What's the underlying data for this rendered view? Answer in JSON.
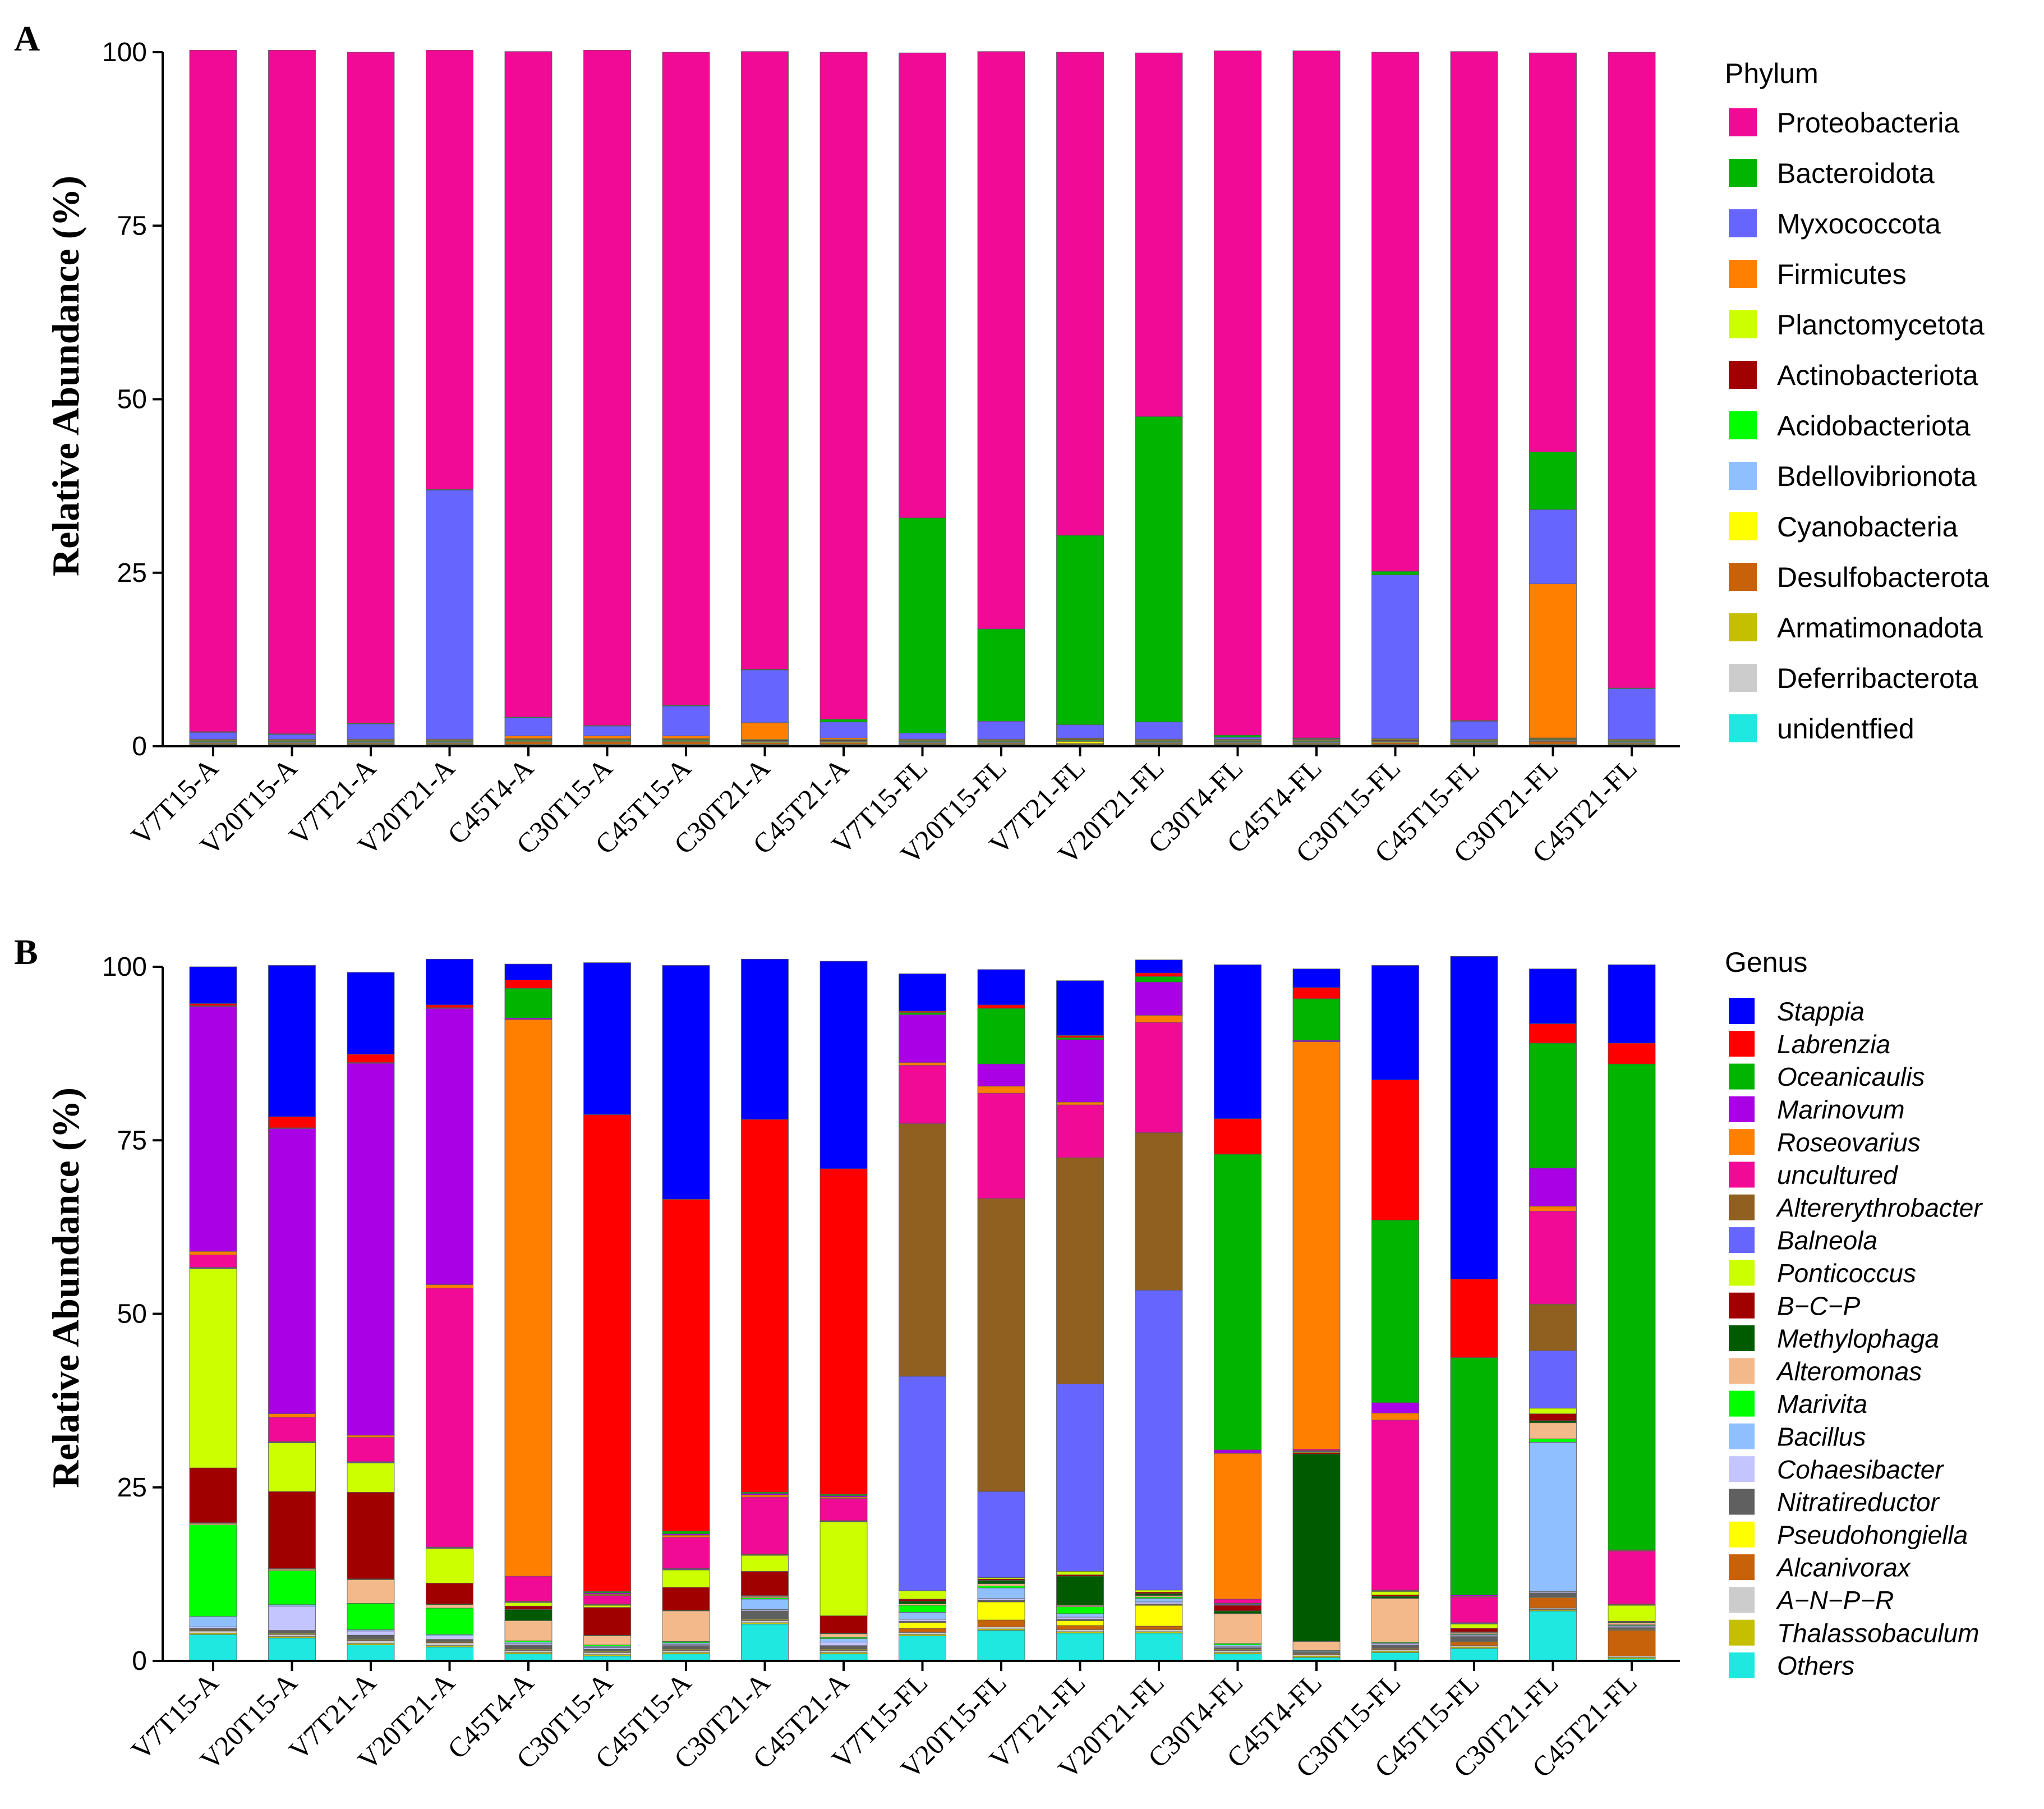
{
  "figure": {
    "panel_labels": [
      "A",
      "B"
    ]
  },
  "chart_data": [
    {
      "type": "bar",
      "stacked": true,
      "panel": "A",
      "title": "",
      "xlabel": "",
      "ylabel": "Relative Abundance (%)",
      "ylim": [
        0,
        100
      ],
      "yticks": [
        0,
        25,
        50,
        75,
        100
      ],
      "legend_title": "Phylum",
      "legend_position": "right",
      "categories": [
        "V7T15-A",
        "V20T15-A",
        "V7T21-A",
        "V20T21-A",
        "C45T4-A",
        "C30T15-A",
        "C45T15-A",
        "C30T21-A",
        "C45T21-A",
        "V7T15-FL",
        "V20T15-FL",
        "V7T21-FL",
        "V20T21-FL",
        "C30T4-FL",
        "C45T4-FL",
        "C30T15-FL",
        "C45T15-FL",
        "C30T21-FL",
        "C45T21-FL"
      ],
      "series": [
        {
          "name": "unidentfied",
          "color": "#1fe8e0",
          "values": [
            0.1,
            0.1,
            0.1,
            0.1,
            0.1,
            0.1,
            0.1,
            0.1,
            0.1,
            0.1,
            0.1,
            0.1,
            0.1,
            0.1,
            0.1,
            0.1,
            0.1,
            0.1,
            0.1
          ]
        },
        {
          "name": "Deferribacterota",
          "color": "#cccccc",
          "values": [
            0.1,
            0.1,
            0.1,
            0.1,
            0.1,
            0.1,
            0.1,
            0.1,
            0.1,
            0.1,
            0.1,
            0.1,
            0.1,
            0.1,
            0.1,
            0.1,
            0.1,
            0.1,
            0.1
          ]
        },
        {
          "name": "Armatimonadota",
          "color": "#c4c000",
          "values": [
            0.1,
            0.1,
            0.1,
            0.1,
            0.1,
            0.1,
            0.1,
            0.1,
            0.1,
            0.1,
            0.1,
            0.1,
            0.1,
            0.1,
            0.1,
            0.1,
            0.1,
            0.1,
            0.1
          ]
        },
        {
          "name": "Desulfobacterota",
          "color": "#c8620a",
          "values": [
            0.1,
            0.1,
            0.1,
            0.1,
            0.3,
            0.3,
            0.3,
            0.2,
            0.2,
            0.1,
            0.1,
            0.1,
            0.1,
            0.1,
            0.1,
            0.2,
            0.1,
            0.4,
            0.1
          ]
        },
        {
          "name": "Cyanobacteria",
          "color": "#ffff00",
          "values": [
            0.1,
            0.1,
            0.1,
            0.1,
            0.1,
            0.1,
            0.1,
            0.1,
            0.1,
            0.1,
            0.1,
            0.3,
            0.1,
            0.1,
            0.1,
            0.1,
            0.1,
            0.1,
            0.1
          ]
        },
        {
          "name": "Bdellovibrionota",
          "color": "#8fbfff",
          "values": [
            0.1,
            0.1,
            0.1,
            0.1,
            0.1,
            0.1,
            0.1,
            0.1,
            0.1,
            0.1,
            0.1,
            0.1,
            0.1,
            0.1,
            0.1,
            0.1,
            0.1,
            0.1,
            0.1
          ]
        },
        {
          "name": "Acidobacteriota",
          "color": "#00ff00",
          "values": [
            0.1,
            0.1,
            0.1,
            0.1,
            0.1,
            0.1,
            0.1,
            0.1,
            0.1,
            0.1,
            0.1,
            0.1,
            0.1,
            0.1,
            0.1,
            0.1,
            0.1,
            0.1,
            0.1
          ]
        },
        {
          "name": "Actinobacteriota",
          "color": "#a00000",
          "values": [
            0.1,
            0.1,
            0.1,
            0.1,
            0.1,
            0.1,
            0.1,
            0.1,
            0.1,
            0.1,
            0.1,
            0.1,
            0.1,
            0.1,
            0.1,
            0.1,
            0.1,
            0.1,
            0.1
          ]
        },
        {
          "name": "Planctomycetota",
          "color": "#ccff00",
          "values": [
            0.1,
            0.1,
            0.1,
            0.1,
            0.1,
            0.1,
            0.1,
            0.1,
            0.1,
            0.1,
            0.1,
            0.1,
            0.1,
            0.1,
            0.1,
            0.1,
            0.1,
            0.1,
            0.1
          ]
        },
        {
          "name": "Firmicutes",
          "color": "#ff7f00",
          "values": [
            0.1,
            0.1,
            0.1,
            0.1,
            0.4,
            0.4,
            0.4,
            2.4,
            0.2,
            0.1,
            0.1,
            0.1,
            0.1,
            0.1,
            0.1,
            0.1,
            0.1,
            22.2,
            0.1
          ]
        },
        {
          "name": "Myxococcota",
          "color": "#6666ff",
          "values": [
            1.0,
            0.7,
            2.2,
            35.9,
            2.6,
            1.4,
            4.3,
            7.6,
            2.3,
            0.9,
            2.6,
            1.9,
            2.5,
            0.3,
            0.1,
            23.6,
            2.6,
            10.7,
            7.3
          ]
        },
        {
          "name": "Bacteroidota",
          "color": "#00b400",
          "values": [
            0.1,
            0.1,
            0.1,
            0.1,
            0.1,
            0.1,
            0.1,
            0.1,
            0.4,
            31.0,
            13.3,
            27.3,
            44.0,
            0.3,
            0.1,
            0.5,
            0.1,
            8.3,
            0.1
          ]
        },
        {
          "name": "Proteobacteria",
          "color": "#f00a96",
          "values": [
            98.2,
            98.5,
            96.7,
            63.3,
            95.9,
            97.3,
            94.1,
            89.0,
            96.1,
            67.0,
            83.2,
            69.6,
            52.4,
            98.6,
            99.0,
            74.8,
            96.4,
            57.5,
            91.6
          ]
        }
      ],
      "legend_order": [
        "Proteobacteria",
        "Bacteroidota",
        "Myxococcota",
        "Firmicutes",
        "Planctomycetota",
        "Actinobacteriota",
        "Acidobacteriota",
        "Bdellovibrionota",
        "Cyanobacteria",
        "Desulfobacterota",
        "Armatimonadota",
        "Deferribacterota",
        "unidentfied"
      ],
      "legend_italic": false
    },
    {
      "type": "bar",
      "stacked": true,
      "panel": "B",
      "title": "",
      "xlabel": "",
      "ylabel": "Relative Abundance (%)",
      "ylim": [
        0,
        100
      ],
      "yticks": [
        0,
        25,
        50,
        75,
        100
      ],
      "legend_title": "Genus",
      "legend_position": "right",
      "categories": [
        "V7T15-A",
        "V20T15-A",
        "V7T21-A",
        "V20T21-A",
        "C45T4-A",
        "C30T15-A",
        "C45T15-A",
        "C30T21-A",
        "C45T21-A",
        "V7T15-FL",
        "V20T15-FL",
        "V7T21-FL",
        "V20T21-FL",
        "C30T4-FL",
        "C45T4-FL",
        "C30T15-FL",
        "C45T15-FL",
        "C30T21-FL",
        "C45T21-FL"
      ],
      "series": [
        {
          "name": "Others",
          "color": "#1fe8e0",
          "values": [
            3.8,
            3.3,
            2.3,
            2.0,
            1.0,
            0.7,
            1.0,
            5.3,
            1.0,
            3.6,
            4.4,
            4.0,
            4.0,
            1.0,
            0.5,
            1.2,
            1.8,
            7.2,
            0.3
          ]
        },
        {
          "name": "Thalassobaculum",
          "color": "#c4c000",
          "values": [
            0.2,
            0.2,
            0.2,
            0.2,
            0.2,
            0.2,
            0.2,
            0.2,
            0.2,
            0.2,
            0.2,
            0.2,
            0.2,
            0.2,
            0.2,
            0.2,
            0.2,
            0.2,
            0.2
          ]
        },
        {
          "name": "A−N−P−R",
          "color": "#cccccc",
          "values": [
            0.3,
            0.3,
            0.4,
            0.4,
            0.3,
            0.3,
            0.3,
            0.3,
            0.3,
            0.3,
            0.3,
            0.3,
            0.3,
            0.3,
            0.2,
            0.2,
            0.2,
            0.2,
            0.2
          ]
        },
        {
          "name": "Alcanivorax",
          "color": "#c8620a",
          "values": [
            0.1,
            0.1,
            0.1,
            0.1,
            0.1,
            0.1,
            0.1,
            0.1,
            0.1,
            0.6,
            1.0,
            0.6,
            0.5,
            0.1,
            0.1,
            0.1,
            0.5,
            1.5,
            3.7
          ]
        },
        {
          "name": "Pseudohongiella",
          "color": "#ffff00",
          "values": [
            0.1,
            0.1,
            0.1,
            0.1,
            0.1,
            0.1,
            0.1,
            0.1,
            0.1,
            0.8,
            2.6,
            0.7,
            3.0,
            0.1,
            0.1,
            0.1,
            0.1,
            0.1,
            0.1
          ]
        },
        {
          "name": "Nitratireductor",
          "color": "#606060",
          "values": [
            0.2,
            0.4,
            0.6,
            0.3,
            0.6,
            0.3,
            0.5,
            1.2,
            0.5,
            0.2,
            0.2,
            0.2,
            0.2,
            0.2,
            0.1,
            0.5,
            0.7,
            0.6,
            0.3
          ]
        },
        {
          "name": "Cohaesibacter",
          "color": "#c4c4ff",
          "values": [
            0.2,
            3.5,
            0.6,
            0.5,
            0.2,
            0.2,
            0.2,
            0.2,
            0.5,
            0.3,
            0.3,
            0.3,
            0.3,
            0.2,
            0.1,
            0.2,
            0.2,
            0.2,
            0.2
          ]
        },
        {
          "name": "Bacillus",
          "color": "#8fbfff",
          "values": [
            1.5,
            0.2,
            0.2,
            0.2,
            0.2,
            0.2,
            0.2,
            1.5,
            0.5,
            1.0,
            1.5,
            0.5,
            0.5,
            0.2,
            0.1,
            0.1,
            0.1,
            21.5,
            0.1
          ]
        },
        {
          "name": "Marivita",
          "color": "#00ff00",
          "values": [
            13.2,
            4.9,
            3.8,
            3.8,
            0.2,
            0.2,
            0.2,
            0.2,
            0.2,
            1.0,
            0.3,
            1.0,
            0.2,
            0.2,
            0.1,
            0.1,
            0.1,
            0.5,
            0.1
          ]
        },
        {
          "name": "Alteromonas",
          "color": "#f4b98a",
          "values": [
            0.2,
            0.2,
            3.4,
            0.5,
            2.9,
            1.3,
            4.4,
            0.2,
            0.5,
            0.2,
            0.3,
            0.2,
            0.2,
            4.3,
            1.3,
            6.3,
            0.2,
            2.3,
            0.3
          ]
        },
        {
          "name": "Methylophaga",
          "color": "#005a00",
          "values": [
            0.1,
            0.1,
            0.1,
            0.1,
            1.6,
            0.1,
            0.1,
            0.1,
            0.1,
            0.4,
            0.5,
            4.2,
            0.3,
            0.4,
            27.0,
            0.3,
            0.1,
            0.3,
            0.1
          ]
        },
        {
          "name": "B−C−P",
          "color": "#a00000",
          "values": [
            7.9,
            11.1,
            12.5,
            3.0,
            0.5,
            4.0,
            3.3,
            3.5,
            2.5,
            0.3,
            0.2,
            0.2,
            0.2,
            0.8,
            0.2,
            0.2,
            0.5,
            1.0,
            0.1
          ]
        },
        {
          "name": "Ponticoccus",
          "color": "#ccff00",
          "values": [
            28.7,
            7.0,
            4.2,
            5.0,
            0.5,
            0.3,
            2.5,
            2.3,
            13.5,
            1.2,
            0.2,
            0.5,
            0.3,
            0.1,
            0.1,
            0.5,
            0.6,
            0.8,
            2.3
          ]
        },
        {
          "name": "Balneola",
          "color": "#6666ff",
          "values": [
            0.1,
            0.1,
            0.1,
            0.1,
            0.1,
            0.1,
            0.1,
            0.1,
            0.1,
            30.9,
            12.4,
            27.0,
            43.2,
            0.1,
            0.1,
            0.1,
            0.1,
            8.3,
            0.1
          ]
        },
        {
          "name": "Altererythrobacter",
          "color": "#906020",
          "values": [
            0.1,
            0.1,
            0.1,
            0.1,
            0.1,
            0.1,
            0.1,
            0.1,
            0.1,
            36.4,
            42.2,
            32.6,
            22.7,
            0.1,
            0.1,
            0.1,
            0.1,
            6.7,
            0.1
          ]
        },
        {
          "name": "uncultured",
          "color": "#f00a96",
          "values": [
            1.8,
            3.5,
            3.5,
            37.3,
            3.6,
            1.2,
            4.5,
            8.2,
            3.2,
            8.4,
            15.2,
            7.6,
            15.9,
            0.6,
            0.2,
            24.5,
            3.7,
            13.4,
            7.6
          ]
        },
        {
          "name": "Roseovarius",
          "color": "#ff7f00",
          "values": [
            0.5,
            0.5,
            0.3,
            0.5,
            80.2,
            0.2,
            0.3,
            0.3,
            0.2,
            0.4,
            1.0,
            0.4,
            1.0,
            21.0,
            58.7,
            1.0,
            0.1,
            0.7,
            0.1
          ]
        },
        {
          "name": "Marinovum",
          "color": "#aa00e6",
          "values": [
            35.3,
            41.1,
            53.6,
            39.8,
            0.2,
            0.2,
            0.2,
            0.2,
            0.2,
            6.9,
            3.2,
            9.0,
            4.8,
            0.5,
            0.2,
            1.5,
            0.2,
            5.5,
            0.1
          ]
        },
        {
          "name": "Oceanicaulis",
          "color": "#00b400",
          "values": [
            0.1,
            0.1,
            0.1,
            0.1,
            4.3,
            0.2,
            0.4,
            0.2,
            0.2,
            0.3,
            8.0,
            0.3,
            0.8,
            42.6,
            6.0,
            26.3,
            34.2,
            18.0,
            70.0
          ]
        },
        {
          "name": "Labrenzia",
          "color": "#ff0000",
          "values": [
            0.3,
            1.6,
            1.2,
            0.4,
            1.2,
            68.7,
            47.8,
            53.7,
            46.9,
            0.2,
            0.5,
            0.3,
            0.5,
            5.1,
            1.6,
            20.2,
            11.3,
            2.8,
            3.0
          ]
        },
        {
          "name": "Stappia",
          "color": "#0000ff",
          "values": [
            5.3,
            21.8,
            11.8,
            6.6,
            2.3,
            21.9,
            33.7,
            23.1,
            29.9,
            5.4,
            5.1,
            7.9,
            1.9,
            22.2,
            2.7,
            16.5,
            46.5,
            7.9,
            11.3
          ]
        }
      ],
      "legend_order": [
        "Stappia",
        "Labrenzia",
        "Oceanicaulis",
        "Marinovum",
        "Roseovarius",
        "uncultured",
        "Altererythrobacter",
        "Balneola",
        "Ponticoccus",
        "B−C−P",
        "Methylophaga",
        "Alteromonas",
        "Marivita",
        "Bacillus",
        "Cohaesibacter",
        "Nitratireductor",
        "Pseudohongiella",
        "Alcanivorax",
        "A−N−P−R",
        "Thalassobaculum",
        "Others"
      ],
      "legend_italic": true
    }
  ]
}
